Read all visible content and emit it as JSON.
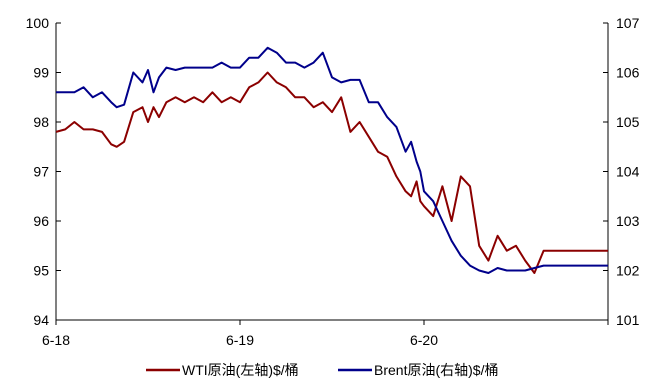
{
  "chart_data": {
    "type": "line",
    "title": "",
    "x_ticks": [
      "6-18",
      "6-19",
      "6-20"
    ],
    "x_range": [
      0,
      3
    ],
    "left_axis": {
      "label": "",
      "range": [
        94,
        100
      ],
      "ticks": [
        "94",
        "95",
        "96",
        "97",
        "98",
        "99",
        "100"
      ]
    },
    "right_axis": {
      "label": "",
      "range": [
        101,
        107
      ],
      "ticks": [
        "101",
        "102",
        "103",
        "104",
        "105",
        "106",
        "107"
      ]
    },
    "grid": false,
    "legend_position": "bottom",
    "series": [
      {
        "name": "WTI原油(左轴)$/桶",
        "axis": "left",
        "color": "#8B0000",
        "x": [
          0.0,
          0.05,
          0.1,
          0.15,
          0.2,
          0.25,
          0.3,
          0.33,
          0.37,
          0.42,
          0.47,
          0.5,
          0.53,
          0.56,
          0.6,
          0.65,
          0.7,
          0.75,
          0.8,
          0.85,
          0.9,
          0.95,
          1.0,
          1.05,
          1.1,
          1.15,
          1.2,
          1.25,
          1.3,
          1.35,
          1.4,
          1.45,
          1.5,
          1.55,
          1.6,
          1.65,
          1.7,
          1.75,
          1.8,
          1.85,
          1.9,
          1.93,
          1.96,
          1.98,
          2.0,
          2.05,
          2.1,
          2.15,
          2.2,
          2.25,
          2.3,
          2.35,
          2.4,
          2.45,
          2.5,
          2.55,
          2.6,
          2.65,
          2.7,
          2.72,
          2.75,
          2.8,
          2.85,
          2.88,
          2.9,
          2.92,
          2.95,
          3.0
        ],
        "y": [
          97.8,
          97.85,
          98.0,
          97.85,
          97.85,
          97.8,
          97.55,
          97.5,
          97.6,
          98.2,
          98.3,
          98.0,
          98.3,
          98.1,
          98.4,
          98.5,
          98.4,
          98.5,
          98.4,
          98.6,
          98.4,
          98.5,
          98.4,
          98.7,
          98.8,
          99.0,
          98.8,
          98.7,
          98.5,
          98.5,
          98.3,
          98.4,
          98.2,
          98.5,
          97.8,
          98.0,
          97.7,
          97.4,
          97.3,
          96.9,
          96.6,
          96.5,
          96.8,
          96.4,
          96.3,
          96.1,
          96.7,
          96.0,
          96.9,
          96.7,
          95.5,
          95.2,
          95.7,
          95.4,
          95.5,
          95.2,
          94.95,
          95.4,
          95.4,
          95.4,
          95.4,
          95.4,
          95.4,
          95.4,
          95.4,
          95.4,
          95.4,
          95.4
        ]
      },
      {
        "name": "Brent原油(右轴)$/桶",
        "axis": "right",
        "color": "#00008B",
        "x": [
          0.0,
          0.05,
          0.1,
          0.15,
          0.2,
          0.25,
          0.3,
          0.33,
          0.37,
          0.42,
          0.47,
          0.5,
          0.53,
          0.56,
          0.6,
          0.65,
          0.7,
          0.75,
          0.8,
          0.85,
          0.9,
          0.95,
          1.0,
          1.05,
          1.1,
          1.15,
          1.2,
          1.25,
          1.3,
          1.35,
          1.4,
          1.45,
          1.5,
          1.55,
          1.6,
          1.65,
          1.7,
          1.75,
          1.8,
          1.85,
          1.9,
          1.93,
          1.96,
          1.98,
          2.0,
          2.05,
          2.1,
          2.15,
          2.2,
          2.25,
          2.3,
          2.35,
          2.4,
          2.45,
          2.5,
          2.55,
          2.6,
          2.65,
          2.7,
          2.72,
          2.75,
          2.8,
          2.85,
          2.88,
          2.9,
          2.92,
          2.95,
          3.0
        ],
        "y": [
          105.6,
          105.6,
          105.6,
          105.7,
          105.5,
          105.6,
          105.4,
          105.3,
          105.35,
          106.0,
          105.8,
          106.05,
          105.6,
          105.9,
          106.1,
          106.05,
          106.1,
          106.1,
          106.1,
          106.1,
          106.2,
          106.1,
          106.1,
          106.3,
          106.3,
          106.5,
          106.4,
          106.2,
          106.2,
          106.1,
          106.2,
          106.4,
          105.9,
          105.8,
          105.85,
          105.85,
          105.4,
          105.4,
          105.1,
          104.9,
          104.4,
          104.6,
          104.2,
          104.0,
          103.6,
          103.4,
          103.0,
          102.6,
          102.3,
          102.1,
          102.0,
          101.95,
          102.05,
          102.0,
          102.0,
          102.0,
          102.05,
          102.1,
          102.1,
          102.1,
          102.1,
          102.1,
          102.1,
          102.1,
          102.1,
          102.1,
          102.1,
          102.1
        ]
      }
    ]
  }
}
